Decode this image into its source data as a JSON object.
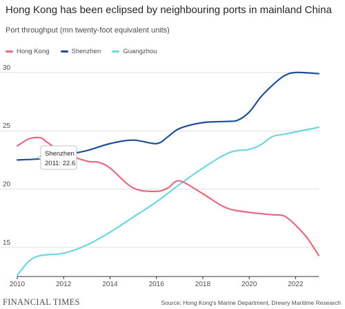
{
  "title": "Hong Kong has been eclipsed by neighbouring ports in mainland China",
  "subtitle": "Port throughput (mn twenty-foot equivalent units)",
  "footer": {
    "brand": "FINANCIAL TIMES",
    "source": "Source: Hong Kong's Marine Department, Drewry Maritime Research"
  },
  "tooltip": {
    "series": "Shenzhen",
    "text": "2011: 22.6"
  },
  "colors": {
    "hong_kong": "#e8697f",
    "shenzhen": "#1f4f99",
    "guangzhou": "#6fd5e0",
    "grid": "#e0e0e0",
    "axis": "#333333"
  },
  "chart_data": {
    "type": "line",
    "title": "Hong Kong has been eclipsed by neighbouring ports in mainland China",
    "ylabel": "Port throughput (mn twenty-foot equivalent units)",
    "xlabel": "",
    "xlim": [
      2010,
      2023
    ],
    "ylim": [
      12.5,
      31
    ],
    "x_ticks": [
      2010,
      2012,
      2014,
      2016,
      2018,
      2020,
      2022
    ],
    "y_ticks": [
      15,
      20,
      25,
      30
    ],
    "grid": true,
    "legend": "top-left",
    "series": [
      {
        "name": "Hong Kong",
        "color": "#e8697f",
        "x": [
          2010,
          2010.5,
          2011,
          2011.3,
          2012,
          2013,
          2013.5,
          2014,
          2015,
          2016,
          2016.5,
          2017,
          2018,
          2019,
          2020,
          2021,
          2021.5,
          2022,
          2022.5,
          2023
        ],
        "y": [
          23.7,
          24.3,
          24.4,
          24.0,
          23.1,
          22.4,
          22.3,
          21.8,
          20.1,
          19.8,
          20.1,
          20.7,
          19.6,
          18.4,
          18.0,
          17.8,
          17.7,
          16.9,
          15.8,
          14.3
        ]
      },
      {
        "name": "Shenzhen",
        "color": "#1f4f99",
        "x": [
          2010,
          2011,
          2012,
          2013,
          2014,
          2015,
          2016,
          2016.5,
          2017,
          2018,
          2019,
          2019.5,
          2020,
          2020.5,
          2021,
          2021.5,
          2022,
          2023
        ],
        "y": [
          22.5,
          22.6,
          22.9,
          23.3,
          23.9,
          24.2,
          23.9,
          24.5,
          25.2,
          25.7,
          25.8,
          25.9,
          26.6,
          27.9,
          28.9,
          29.7,
          30.0,
          29.9
        ]
      },
      {
        "name": "Guangzhou",
        "color": "#6fd5e0",
        "x": [
          2010,
          2010.5,
          2011,
          2012,
          2013,
          2014,
          2015,
          2016,
          2017,
          2018,
          2019,
          2019.5,
          2020,
          2020.5,
          2021,
          2021.5,
          2022,
          2023
        ],
        "y": [
          12.6,
          13.8,
          14.3,
          14.5,
          15.2,
          16.3,
          17.6,
          18.9,
          20.4,
          21.8,
          23.0,
          23.3,
          23.4,
          23.8,
          24.5,
          24.7,
          24.9,
          25.3
        ]
      }
    ]
  }
}
